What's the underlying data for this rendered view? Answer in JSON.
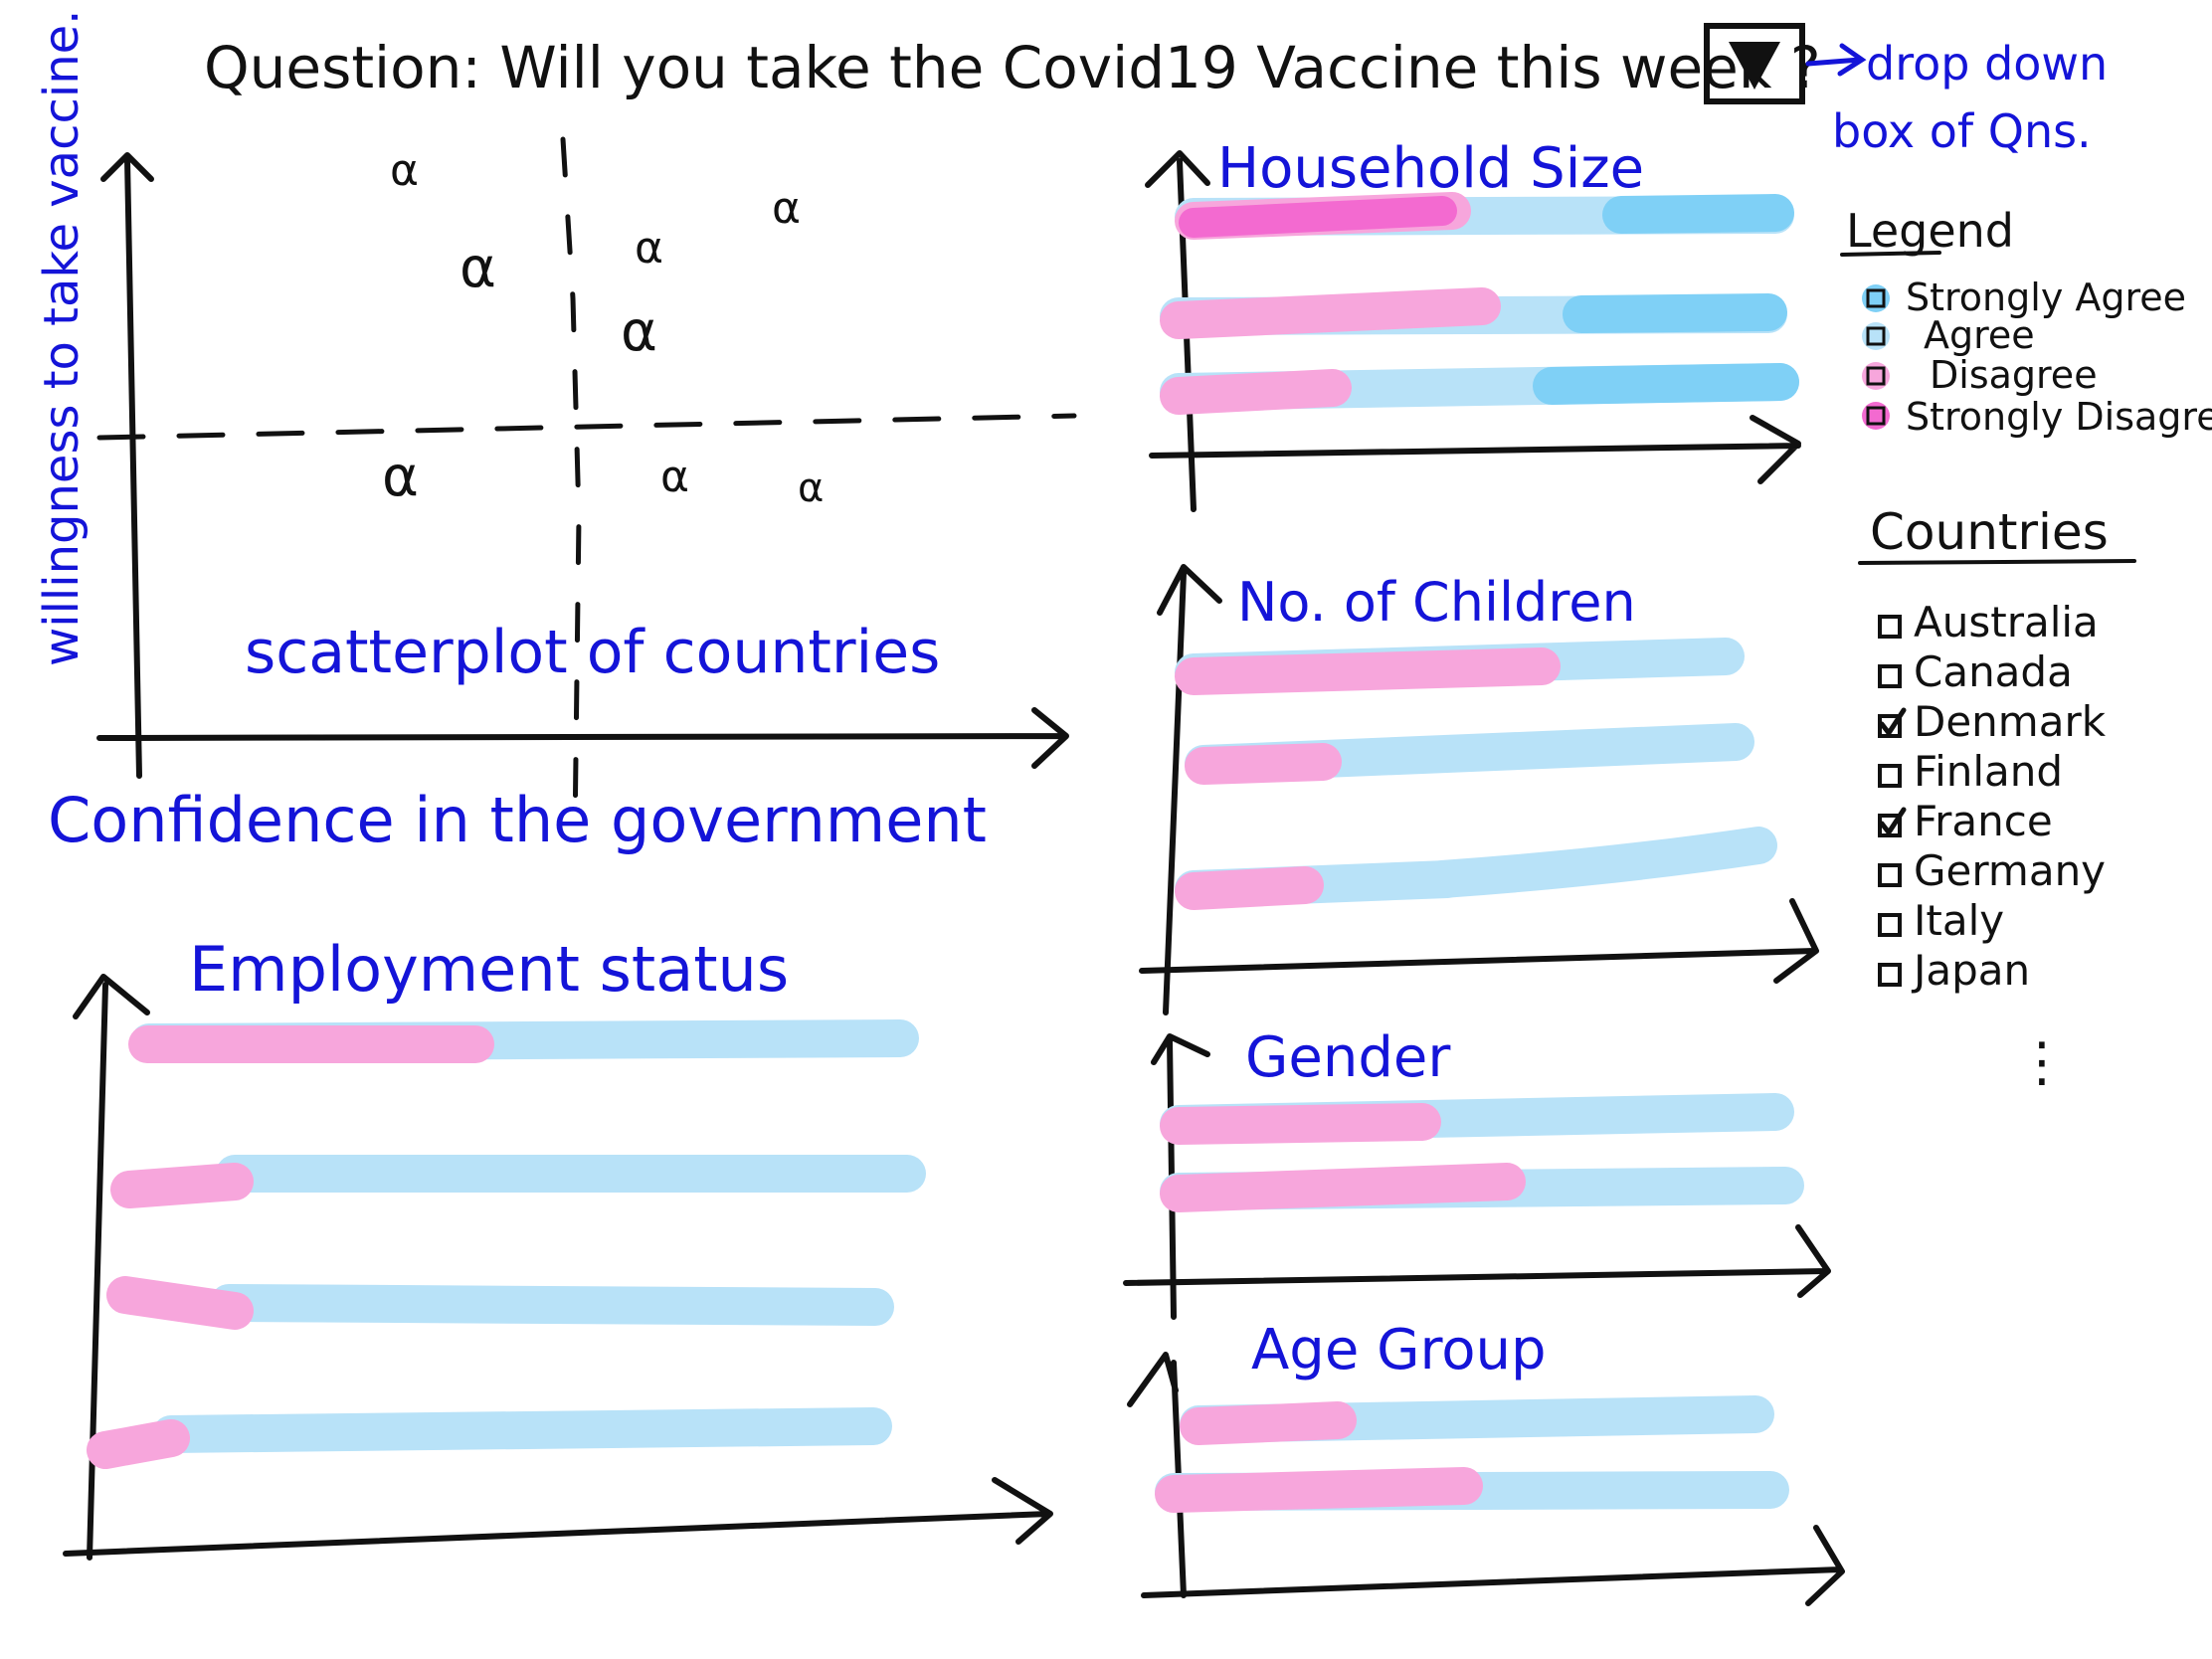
{
  "question": {
    "label": "Question: Will you take the Covid19 Vaccine this week ?",
    "dropdown_note": [
      "drop down",
      "box of Qns."
    ]
  },
  "scatter": {
    "y_label": "willingness to take vaccine.",
    "x_label": "Confidence in the government",
    "caption": "scatterplot of countries",
    "point_glyph": "α"
  },
  "panels": {
    "household": {
      "title": "Household Size"
    },
    "children": {
      "title": "No. of Children"
    },
    "gender": {
      "title": "Gender"
    },
    "age": {
      "title": "Age Group"
    },
    "employment": {
      "title": "Employment status"
    }
  },
  "legend": {
    "title": "Legend",
    "items": [
      "Strongly Agree",
      "Agree",
      "Disagree",
      "Strongly Disagree"
    ],
    "colors": [
      "#7fd0f6",
      "#b8e2f8",
      "#f7a6dc",
      "#f36ad0"
    ]
  },
  "countries": {
    "title": "Countries",
    "items": [
      {
        "name": "Australia",
        "checked": false
      },
      {
        "name": "Canada",
        "checked": false
      },
      {
        "name": "Denmark",
        "checked": true
      },
      {
        "name": "Finland",
        "checked": false
      },
      {
        "name": "France",
        "checked": true
      },
      {
        "name": "Germany",
        "checked": false
      },
      {
        "name": "Italy",
        "checked": false
      },
      {
        "name": "Japan",
        "checked": false
      }
    ],
    "more": "⋮"
  },
  "colors": {
    "ink": "#111111",
    "annotation": "#1414d8",
    "disagree": "#f7a6dc",
    "strongly_disagree": "#f36ad0",
    "agree": "#b8e2f8",
    "strongly_agree": "#7fd0f6"
  }
}
